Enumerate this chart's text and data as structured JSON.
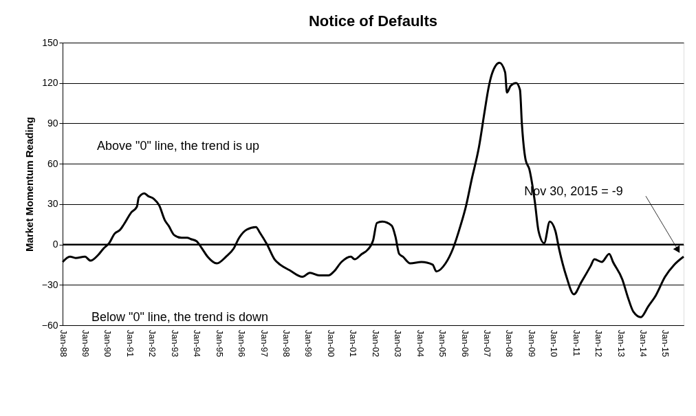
{
  "chart_data": {
    "type": "line",
    "title": "Notice of Defaults",
    "ylabel": "Market Momentum Reading",
    "x": [
      "1988-01",
      "1988-05",
      "1988-08",
      "1989-01",
      "1989-04",
      "1989-08",
      "1989-11",
      "1990-02",
      "1990-05",
      "1990-08",
      "1990-10",
      "1991-02",
      "1991-05",
      "1991-06",
      "1991-09",
      "1991-11",
      "1992-02",
      "1992-05",
      "1992-08",
      "1992-10",
      "1993-01",
      "1993-05",
      "1993-08",
      "1993-10",
      "1994-01",
      "1994-04",
      "1994-07",
      "1994-12",
      "1995-05",
      "1995-09",
      "1995-12",
      "1996-04",
      "1996-09",
      "1996-11",
      "1997-03",
      "1997-07",
      "1997-10",
      "1998-03",
      "1998-10",
      "1999-02",
      "1999-07",
      "1999-12",
      "2000-03",
      "2000-07",
      "2000-12",
      "2001-02",
      "2001-06",
      "2001-09",
      "2001-12",
      "2002-02",
      "2002-05",
      "2002-10",
      "2002-12",
      "2003-02",
      "2003-04",
      "2003-08",
      "2004-02",
      "2004-08",
      "2004-10",
      "2005-03",
      "2005-07",
      "2005-11",
      "2006-02",
      "2006-05",
      "2006-09",
      "2006-12",
      "2007-02",
      "2007-04",
      "2007-08",
      "2007-11",
      "2007-12",
      "2008-02",
      "2008-05",
      "2008-07",
      "2008-08",
      "2008-10",
      "2008-12",
      "2009-03",
      "2009-05",
      "2009-08",
      "2009-11",
      "2010-02",
      "2010-04",
      "2010-08",
      "2010-12",
      "2011-04",
      "2011-09",
      "2011-11",
      "2012-03",
      "2012-07",
      "2012-09",
      "2013-02",
      "2013-05",
      "2013-08",
      "2013-12",
      "2014-04",
      "2014-08",
      "2015-01",
      "2015-06",
      "2015-11"
    ],
    "series": [
      {
        "color": "#000000",
        "values": [
          -13,
          -9,
          -10,
          -9,
          -12,
          -8,
          -3,
          1,
          8,
          11,
          15,
          24,
          28,
          35,
          38,
          36,
          34,
          29,
          18,
          14,
          7,
          5,
          5,
          4,
          2.5,
          -3,
          -9,
          -14,
          -9,
          -3,
          5,
          11,
          13,
          9,
          0,
          -11,
          -15,
          -19,
          -24,
          -21,
          -23,
          -23,
          -20,
          -13,
          -9,
          -11,
          -7,
          -4,
          3,
          16,
          17,
          14,
          6,
          -7,
          -9,
          -14,
          -13,
          -15,
          -20,
          -14,
          -3,
          14,
          29,
          48,
          73,
          99,
          116,
          127,
          135,
          128,
          113,
          118,
          120,
          115,
          90,
          63,
          56,
          32,
          10,
          1,
          17,
          10,
          -3,
          -24,
          -37,
          -28,
          -16,
          -11,
          -13,
          -7,
          -13,
          -26,
          -39,
          -50,
          -54,
          -46,
          -38,
          -24,
          -15,
          -9
        ]
      }
    ],
    "xlim": [
      "1988-01",
      "2015-11"
    ],
    "xticks": [
      {
        "value": "1988-01",
        "label": "Jan-88"
      },
      {
        "value": "1989-01",
        "label": "Jan-89"
      },
      {
        "value": "1990-01",
        "label": "Jan-90"
      },
      {
        "value": "1991-01",
        "label": "Jan-91"
      },
      {
        "value": "1992-01",
        "label": "Jan-92"
      },
      {
        "value": "1993-01",
        "label": "Jan-93"
      },
      {
        "value": "1994-01",
        "label": "Jan-94"
      },
      {
        "value": "1995-01",
        "label": "Jan-95"
      },
      {
        "value": "1996-01",
        "label": "Jan-96"
      },
      {
        "value": "1997-01",
        "label": "Jan-97"
      },
      {
        "value": "1998-01",
        "label": "Jan-98"
      },
      {
        "value": "1999-01",
        "label": "Jan-99"
      },
      {
        "value": "2000-01",
        "label": "Jan-00"
      },
      {
        "value": "2001-01",
        "label": "Jan-01"
      },
      {
        "value": "2002-01",
        "label": "Jan-02"
      },
      {
        "value": "2003-01",
        "label": "Jan-03"
      },
      {
        "value": "2004-01",
        "label": "Jan-04"
      },
      {
        "value": "2005-01",
        "label": "Jan-05"
      },
      {
        "value": "2006-01",
        "label": "Jan-06"
      },
      {
        "value": "2007-01",
        "label": "Jan-07"
      },
      {
        "value": "2008-01",
        "label": "Jan-08"
      },
      {
        "value": "2009-01",
        "label": "Jan-09"
      },
      {
        "value": "2010-01",
        "label": "Jan-10"
      },
      {
        "value": "2011-01",
        "label": "Jan-11"
      },
      {
        "value": "2012-01",
        "label": "Jan-12"
      },
      {
        "value": "2013-01",
        "label": "Jan-13"
      },
      {
        "value": "2014-01",
        "label": "Jan-14"
      },
      {
        "value": "2015-01",
        "label": "Jan-15"
      }
    ],
    "ylim": [
      -60,
      150
    ],
    "yticks": [
      -60,
      -30,
      0,
      30,
      60,
      90,
      120,
      150
    ],
    "grid": "y",
    "marker": "none",
    "line_style": "solid",
    "ref_lines": [
      {
        "axis": "y",
        "value": 0,
        "color": "#000000"
      }
    ],
    "annotations": [
      "Above \"0\" line, the trend is up",
      "Below \"0\" line, the trend is down",
      "Nov 30, 2015 = -9"
    ]
  }
}
